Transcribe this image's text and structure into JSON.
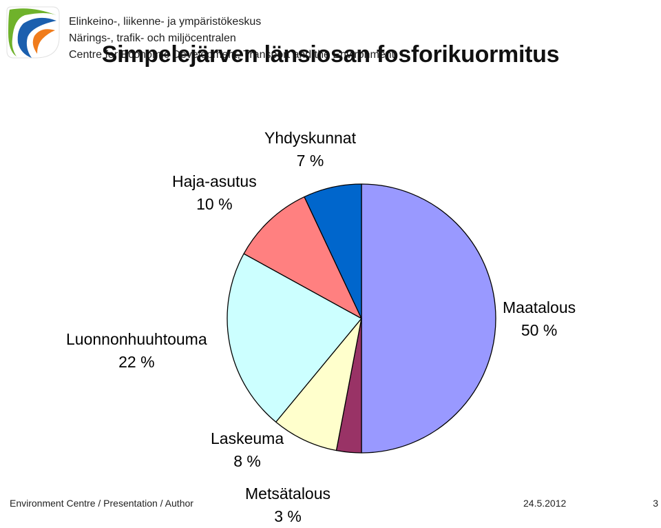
{
  "header": {
    "org_lines": [
      "Elinkeino-, liikenne- ja ympäristökeskus",
      "Närings-, trafik- och miljöcentralen",
      "Centre for Economic Development, Transport and the Environment"
    ],
    "logo_icon": "ely-centre-logo-icon"
  },
  "slide": {
    "title": "Simpelejärven länsiosan fosforikuormitus"
  },
  "chart_data": {
    "type": "pie",
    "title": "Simpelejärven länsiosan fosforikuormitus",
    "slices": [
      {
        "label": "Maatalous",
        "value": 50,
        "value_label": "50 %",
        "color": "#9999ff"
      },
      {
        "label": "Metsätalous",
        "value": 3,
        "value_label": "3 %",
        "color": "#993366"
      },
      {
        "label": "Laskeuma",
        "value": 8,
        "value_label": "8 %",
        "color": "#ffffcc"
      },
      {
        "label": "Luonnonhuuhtouma",
        "value": 22,
        "value_label": "22 %",
        "color": "#ccffff"
      },
      {
        "label": "Haja-asutus",
        "value": 10,
        "value_label": "10 %",
        "color": "#ff8080"
      },
      {
        "label": "Yhdyskunnat",
        "value": 7,
        "value_label": "7 %",
        "color": "#0066cc"
      }
    ],
    "start": "12 o'clock",
    "direction": "clockwise",
    "legend": "none"
  },
  "footer": {
    "left": "Environment Centre / Presentation / Author",
    "date": "24.5.2012",
    "page": "3"
  }
}
